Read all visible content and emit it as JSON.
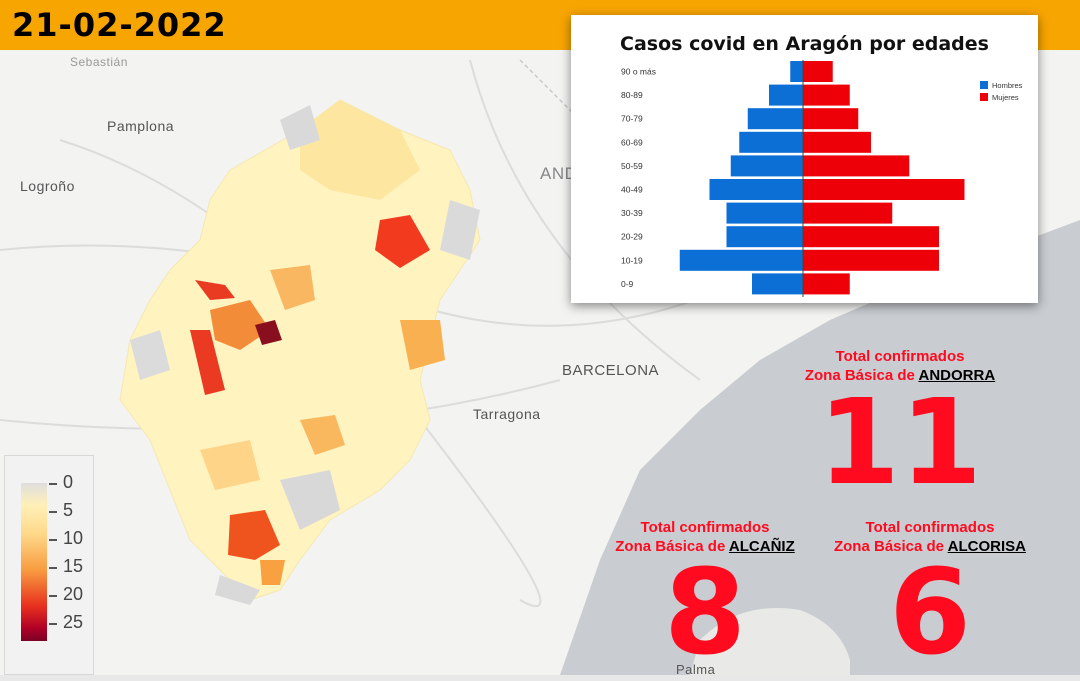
{
  "date": "21-02-2022",
  "map_labels": {
    "donostia": "Sebastián",
    "pamplona": "Pamplona",
    "logrono": "Logroño",
    "andorra_country": "AND",
    "barcelona": "BARCELONA",
    "tarragona": "Tarragona",
    "palma": "Palma"
  },
  "legend": {
    "ticks": [
      "0",
      "5",
      "10",
      "15",
      "20",
      "25"
    ]
  },
  "zones": [
    {
      "heading": "Total confirmados",
      "prefix": "Zona Básica de",
      "name": "ANDORRA",
      "value": "11"
    },
    {
      "heading": "Total confirmados",
      "prefix": "Zona Básica de",
      "name": "ALCAÑIZ",
      "value": "8"
    },
    {
      "heading": "Total confirmados",
      "prefix": "Zona Básica de",
      "name": "ALCORISA",
      "value": "6"
    }
  ],
  "colors": {
    "header": "#f7a500",
    "hombres": "#0b6fd6",
    "mujeres": "#ee0008",
    "highlight": "#ff0a1e"
  },
  "chart_data": {
    "type": "bar",
    "title": "Casos covid en Aragón por edades",
    "categories": [
      "90 o más",
      "80-89",
      "70-79",
      "60-69",
      "50-59",
      "40-49",
      "30-39",
      "20-29",
      "10-19",
      "0-9"
    ],
    "series": [
      {
        "name": "Hombres",
        "values": [
          3,
          8,
          13,
          15,
          17,
          22,
          18,
          18,
          29,
          12
        ]
      },
      {
        "name": "Mujeres",
        "values": [
          7,
          11,
          13,
          16,
          25,
          38,
          21,
          32,
          32,
          11
        ]
      }
    ],
    "legend_position": "top-right",
    "grid": false
  }
}
